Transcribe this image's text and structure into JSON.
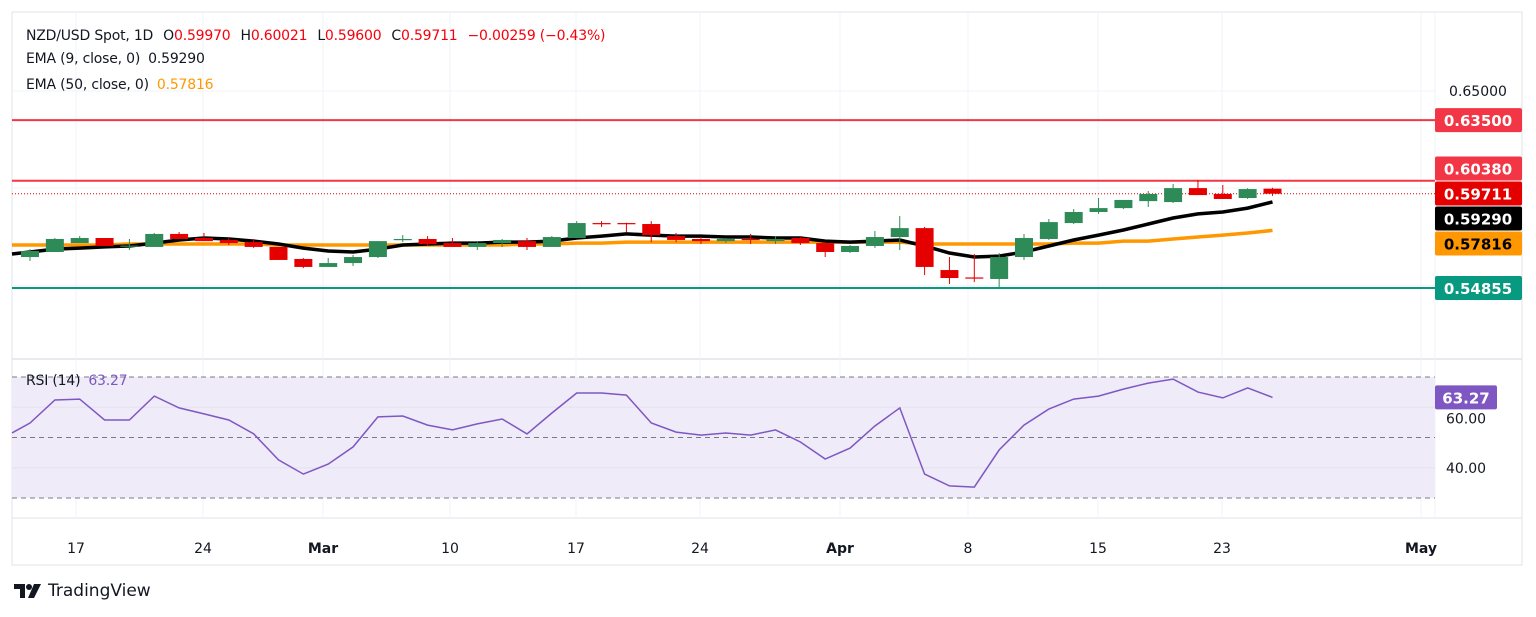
{
  "legend": {
    "symbol": "NZD/USD Spot, 1D",
    "open_label": "O",
    "open": "0.59970",
    "high_label": "H",
    "high": "0.60021",
    "low_label": "L",
    "low": "0.59600",
    "close_label": "C",
    "close": "0.59711",
    "change": "−0.00259 (−0.43%)",
    "ema9_label": "EMA (9, close, 0)",
    "ema9_value": "0.59290",
    "ema50_label": "EMA (50, close, 0)",
    "ema50_value": "0.57816",
    "rsi_label": "RSI (14)",
    "rsi_value": "63.27"
  },
  "footer": {
    "brand": "TradingView"
  },
  "colors": {
    "up": "#2e8b57",
    "down": "#e50000",
    "ema9": "#000000",
    "ema50": "#ff9800",
    "resistance": "#f23645",
    "support": "#089981",
    "rsi": "#7e57c2",
    "rsi_band": "#efebf8"
  },
  "chart_data": [
    {
      "type": "candlestick",
      "title": "NZD/USD Spot, 1D",
      "y_axis_ticks": [
        "0.65000"
      ],
      "ylim": [
        0.535,
        0.665
      ],
      "x_tick_labels": [
        "17",
        "24",
        "Mar",
        "10",
        "17",
        "24",
        "Apr",
        "8",
        "15",
        "23",
        "May"
      ],
      "ohlc": [
        [
          0.5645,
          0.5686,
          0.5625,
          0.5676
        ],
        [
          0.5671,
          0.5743,
          0.5671,
          0.5738
        ],
        [
          0.5717,
          0.5753,
          0.5717,
          0.5743
        ],
        [
          0.5743,
          0.5743,
          0.5702,
          0.5702
        ],
        [
          0.5702,
          0.5738,
          0.5681,
          0.5704
        ],
        [
          0.5697,
          0.5769,
          0.5697,
          0.5764
        ],
        [
          0.5764,
          0.5774,
          0.5738,
          0.5738
        ],
        [
          0.5743,
          0.5769,
          0.5727,
          0.5727
        ],
        [
          0.5733,
          0.5743,
          0.5707,
          0.5717
        ],
        [
          0.5722,
          0.5738,
          0.5692,
          0.5697
        ],
        [
          0.5697,
          0.5697,
          0.563,
          0.563
        ],
        [
          0.5635,
          0.564,
          0.5588,
          0.5594
        ],
        [
          0.5594,
          0.564,
          0.5594,
          0.5614
        ],
        [
          0.5614,
          0.5656,
          0.5599,
          0.5645
        ],
        [
          0.5645,
          0.5727,
          0.564,
          0.5727
        ],
        [
          0.5735,
          0.5758,
          0.5722,
          0.5738
        ],
        [
          0.5738,
          0.5753,
          0.5702,
          0.5712
        ],
        [
          0.5717,
          0.5743,
          0.5697,
          0.5697
        ],
        [
          0.5697,
          0.5722,
          0.5681,
          0.5717
        ],
        [
          0.5717,
          0.5738,
          0.5697,
          0.5733
        ],
        [
          0.5727,
          0.5743,
          0.5681,
          0.5697
        ],
        [
          0.5697,
          0.5753,
          0.5697,
          0.5748
        ],
        [
          0.5743,
          0.583,
          0.5743,
          0.582
        ],
        [
          0.582,
          0.583,
          0.58,
          0.5817
        ],
        [
          0.582,
          0.5822,
          0.5774,
          0.5817
        ],
        [
          0.5815,
          0.583,
          0.5722,
          0.5758
        ],
        [
          0.5753,
          0.5769,
          0.5722,
          0.5733
        ],
        [
          0.5738,
          0.5748,
          0.5712,
          0.5727
        ],
        [
          0.5727,
          0.5743,
          0.5717,
          0.5738
        ],
        [
          0.5738,
          0.5764,
          0.5712,
          0.5733
        ],
        [
          0.5727,
          0.5753,
          0.5712,
          0.5738
        ],
        [
          0.5743,
          0.5753,
          0.5707,
          0.5717
        ],
        [
          0.5717,
          0.5722,
          0.5645,
          0.5671
        ],
        [
          0.5671,
          0.5707,
          0.5666,
          0.5702
        ],
        [
          0.5702,
          0.5779,
          0.5692,
          0.5748
        ],
        [
          0.5748,
          0.5856,
          0.5681,
          0.5794
        ],
        [
          0.5794,
          0.58,
          0.5552,
          0.5594
        ],
        [
          0.5578,
          0.5645,
          0.5506,
          0.5537
        ],
        [
          0.554,
          0.5661,
          0.5516,
          0.5537
        ],
        [
          0.5532,
          0.5666,
          0.5485,
          0.5645
        ],
        [
          0.5645,
          0.5764,
          0.563,
          0.5743
        ],
        [
          0.5738,
          0.5841,
          0.5733,
          0.5825
        ],
        [
          0.582,
          0.5892,
          0.5815,
          0.5877
        ],
        [
          0.5877,
          0.5949,
          0.5867,
          0.5897
        ],
        [
          0.5897,
          0.5939,
          0.5892,
          0.5939
        ],
        [
          0.5933,
          0.5985,
          0.5903,
          0.597
        ],
        [
          0.5928,
          0.6021,
          0.5923,
          0.6
        ],
        [
          0.6,
          0.6042,
          0.5964,
          0.5964
        ],
        [
          0.597,
          0.6016,
          0.5944,
          0.5944
        ],
        [
          0.5949,
          0.6,
          0.5944,
          0.5995
        ],
        [
          0.5997,
          0.6002,
          0.596,
          0.5971
        ]
      ],
      "series": [
        {
          "name": "EMA (9, close, 0)",
          "values": [
            0.5671,
            0.5686,
            0.5691,
            0.5697,
            0.5702,
            0.5717,
            0.5733,
            0.5743,
            0.5738,
            0.5727,
            0.5712,
            0.5691,
            0.5676,
            0.5671,
            0.5686,
            0.5707,
            0.5712,
            0.5717,
            0.5717,
            0.5722,
            0.5722,
            0.5727,
            0.5743,
            0.5753,
            0.5764,
            0.5758,
            0.5753,
            0.5753,
            0.5748,
            0.5748,
            0.5743,
            0.5743,
            0.5727,
            0.5722,
            0.5727,
            0.5733,
            0.5702,
            0.5666,
            0.5645,
            0.565,
            0.5671,
            0.5702,
            0.5733,
            0.5758,
            0.5784,
            0.5815,
            0.5846,
            0.5867,
            0.5877,
            0.5897,
            0.5929
          ]
        },
        {
          "name": "EMA (50, close, 0)",
          "values": [
            0.5707,
            0.5707,
            0.5707,
            0.5707,
            0.5712,
            0.5712,
            0.5712,
            0.5712,
            0.5712,
            0.5712,
            0.5707,
            0.5707,
            0.5707,
            0.5707,
            0.5707,
            0.5707,
            0.5707,
            0.5707,
            0.5707,
            0.5707,
            0.5712,
            0.5712,
            0.5717,
            0.5717,
            0.5722,
            0.5722,
            0.5722,
            0.5722,
            0.5722,
            0.5722,
            0.5722,
            0.5722,
            0.5722,
            0.5722,
            0.5722,
            0.5722,
            0.5712,
            0.5712,
            0.5712,
            0.5712,
            0.5712,
            0.5712,
            0.5717,
            0.5717,
            0.5727,
            0.5727,
            0.5738,
            0.5748,
            0.5758,
            0.5769,
            0.5782
          ]
        }
      ],
      "horizontal_lines": [
        {
          "label": "0.63500",
          "value": 0.635,
          "color": "#f23645",
          "text_color": "#ffffff"
        },
        {
          "label": "0.60380",
          "value": 0.6038,
          "color": "#f23645",
          "text_color": "#ffffff"
        },
        {
          "label": "0.54855",
          "value": 0.54855,
          "color": "#089981",
          "text_color": "#ffffff"
        }
      ],
      "price_labels": [
        {
          "label": "0.59711",
          "color": "#e50000",
          "text_color": "#ffffff"
        },
        {
          "label": "0.59290",
          "color": "#000000",
          "text_color": "#ffffff"
        },
        {
          "label": "0.57816",
          "color": "#ff9800",
          "text_color": "#000000"
        }
      ]
    },
    {
      "type": "line",
      "title": "RSI (14)",
      "ylim": [
        20,
        80
      ],
      "y_axis_ticks": [
        "60.00",
        "40.00"
      ],
      "band": [
        30,
        70
      ],
      "levels": [
        70,
        50,
        30
      ],
      "current_label": "63.27",
      "values": [
        54.8,
        62.4,
        62.7,
        55.8,
        55.8,
        63.7,
        59.8,
        57.8,
        55.8,
        51.2,
        42.6,
        37.9,
        41.2,
        46.9,
        56.8,
        57.1,
        54.1,
        52.5,
        54.5,
        56.1,
        51.2,
        58.1,
        64.7,
        64.7,
        64.0,
        54.8,
        51.8,
        50.8,
        51.5,
        50.8,
        52.5,
        48.5,
        42.9,
        46.5,
        53.8,
        59.8,
        37.9,
        34.0,
        33.6,
        45.9,
        54.1,
        59.4,
        62.7,
        63.7,
        66.0,
        68.0,
        69.3,
        65.0,
        63.1,
        66.4,
        63.27
      ]
    }
  ]
}
